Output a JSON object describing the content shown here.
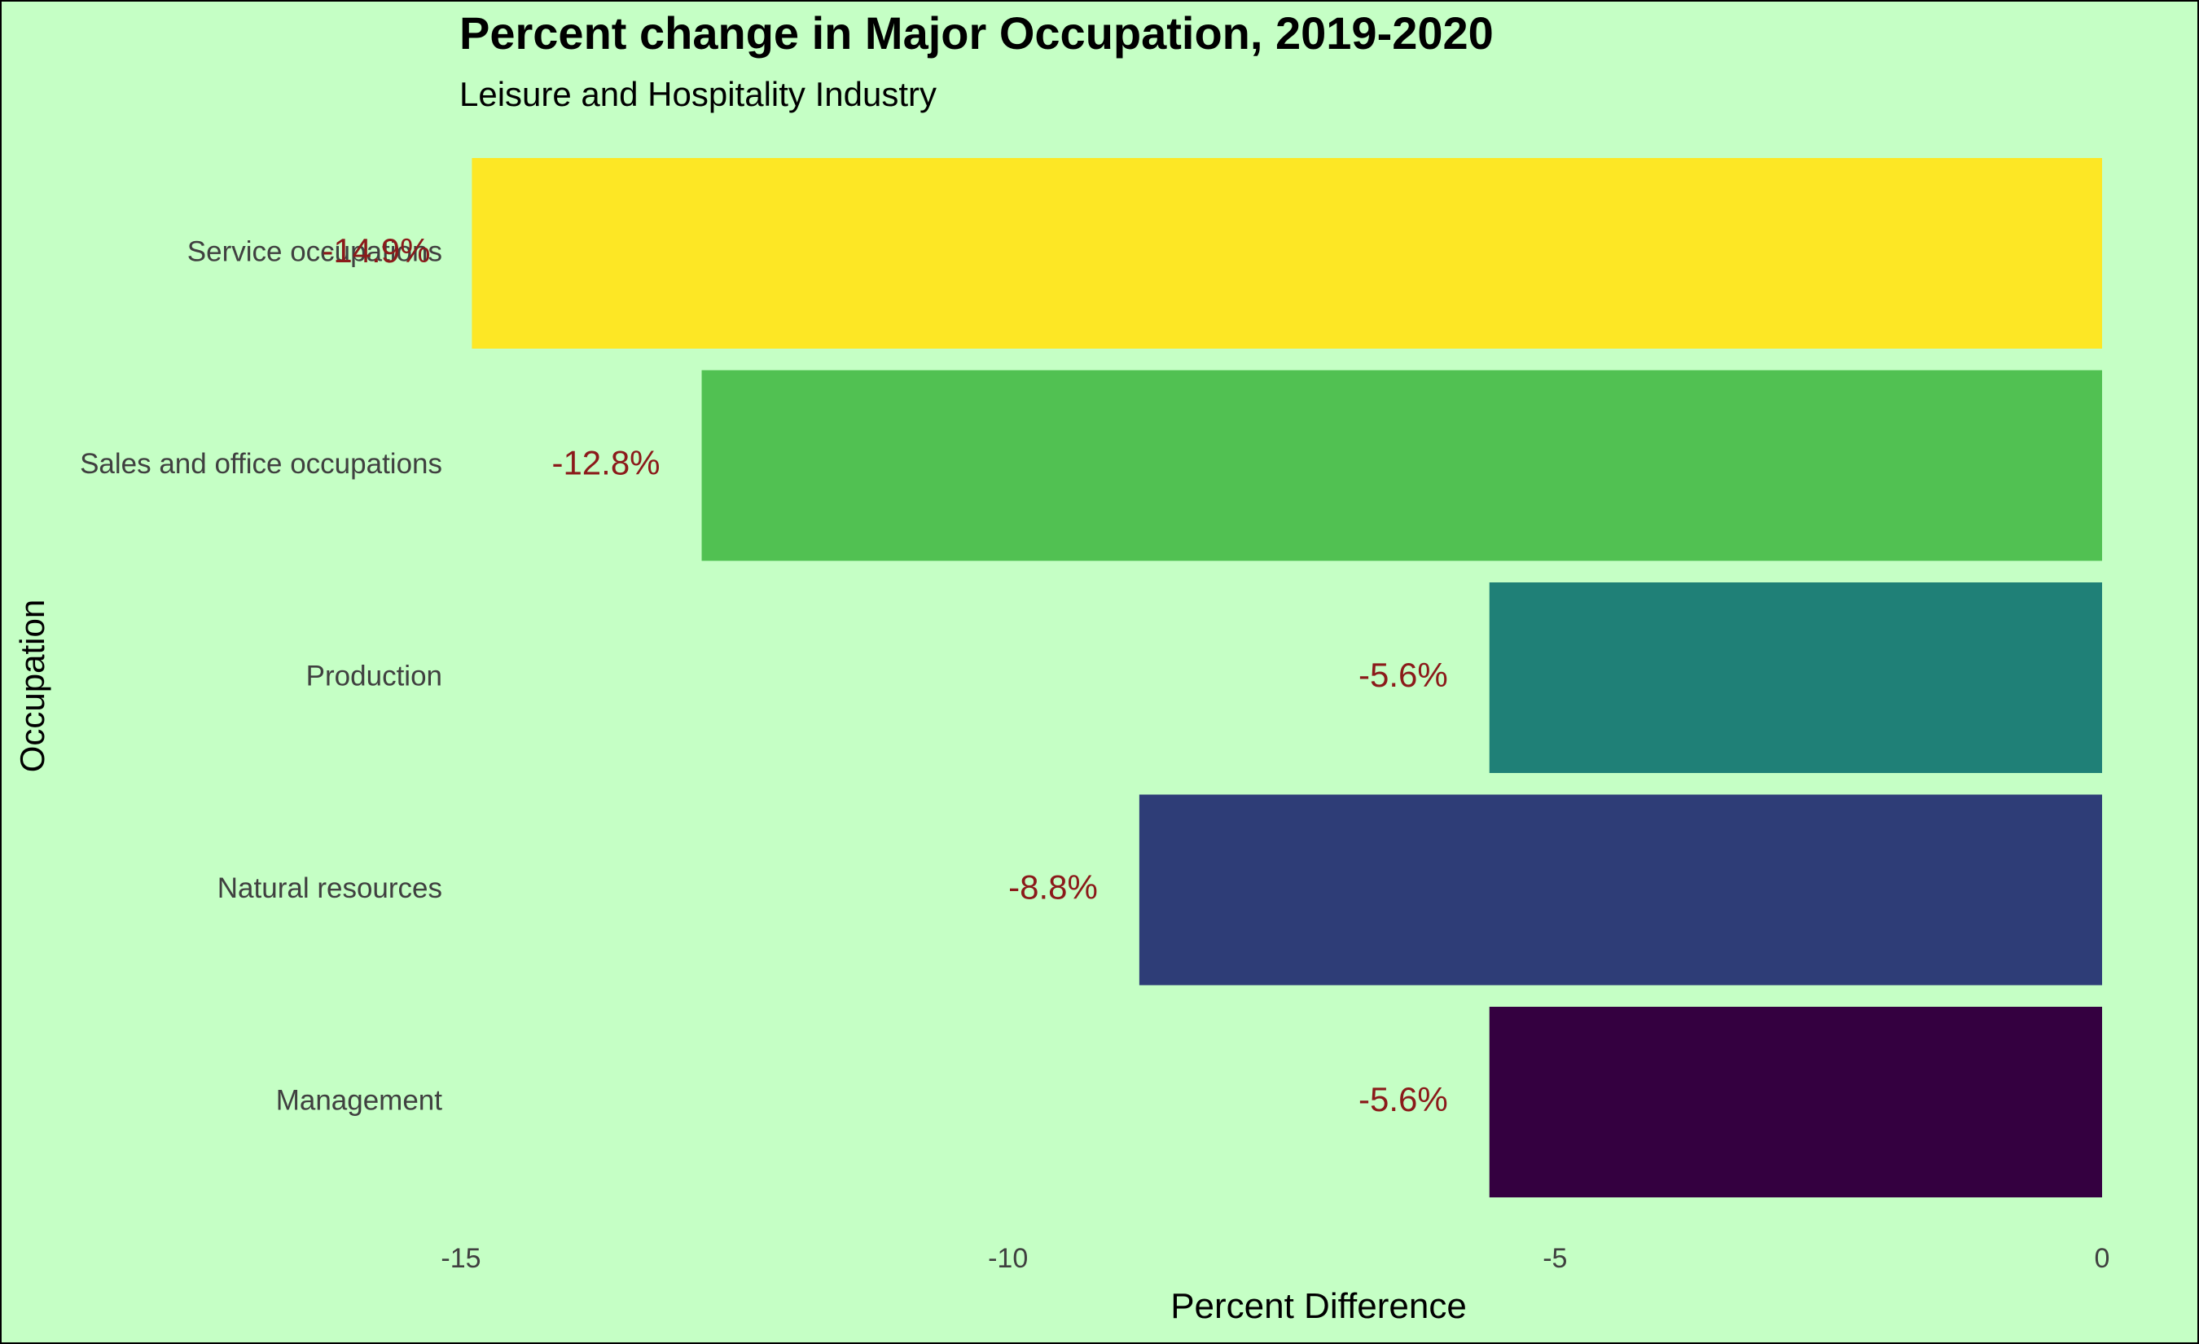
{
  "chart_data": {
    "type": "bar",
    "orientation": "horizontal",
    "title": "Percent change in Major Occupation, 2019-2020",
    "subtitle": "Leisure and Hospitality Industry",
    "xlabel": "Percent Difference",
    "ylabel": "Occupation",
    "xlim": [
      -15,
      0
    ],
    "xticks": [
      -15,
      -10,
      -5,
      0
    ],
    "xtick_labels": [
      "-15",
      "-10",
      "-5",
      "0"
    ],
    "grid": false,
    "legend": "none",
    "categories": [
      "Service occupations",
      "Sales and office occupations",
      "Production",
      "Natural resources",
      "Management"
    ],
    "values": [
      -14.9,
      -12.8,
      -5.6,
      -8.8,
      -5.6
    ],
    "data_labels": [
      "-14.9%",
      "-12.8%",
      "-5.6%",
      "-8.8%",
      "-5.6%"
    ],
    "colors": [
      "#fde725",
      "#51c152",
      "#1f8077",
      "#2e3d77",
      "#340040"
    ],
    "label_color": "#8b1a1a",
    "background": "#c5ffc5"
  }
}
